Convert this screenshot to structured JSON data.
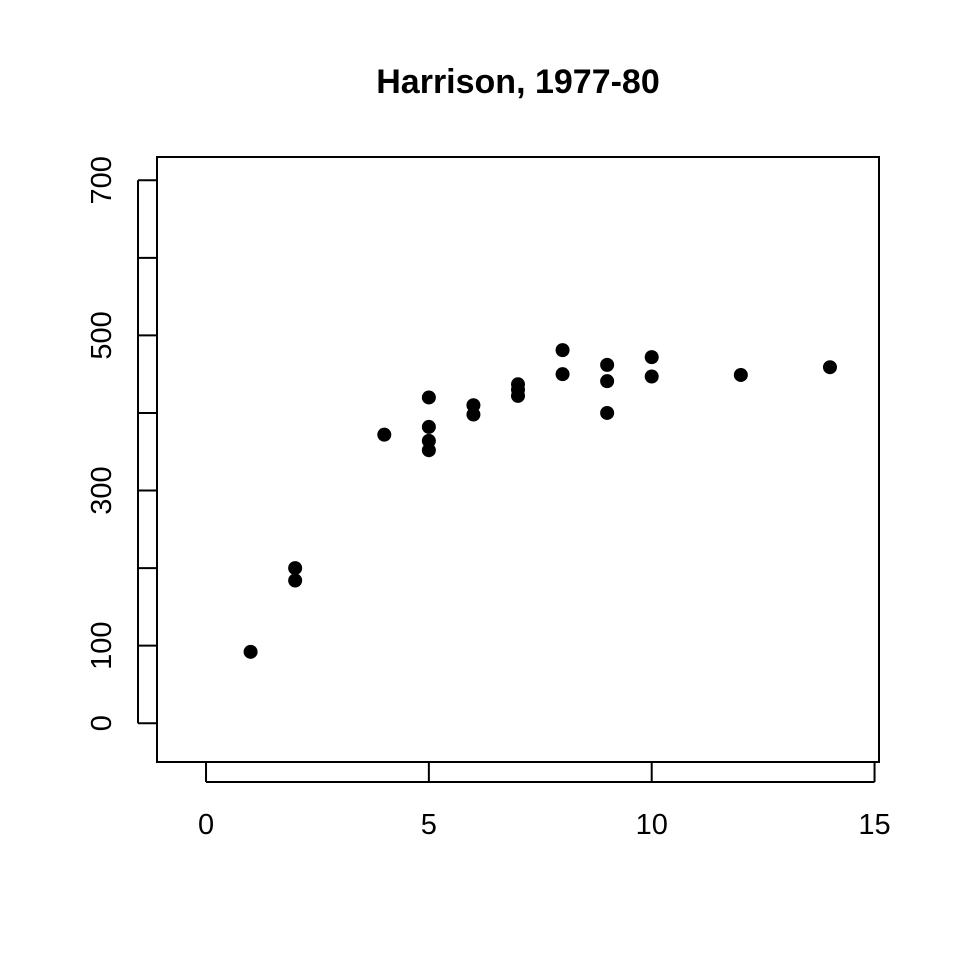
{
  "chart_data": {
    "type": "scatter",
    "title": "Harrison, 1977-80",
    "xlabel": "",
    "ylabel": "",
    "xlim": [
      -1.1,
      15.1
    ],
    "ylim": [
      -50,
      730
    ],
    "x_ticks": [
      0,
      5,
      10,
      15
    ],
    "y_ticks": [
      0,
      100,
      200,
      300,
      400,
      500,
      600,
      700
    ],
    "y_tick_labels": [
      {
        "value": 0,
        "label": "0"
      },
      {
        "value": 100,
        "label": "100"
      },
      {
        "value": 300,
        "label": "300"
      },
      {
        "value": 500,
        "label": "500"
      },
      {
        "value": 700,
        "label": "700"
      }
    ],
    "grid": false,
    "points": [
      {
        "x": 1,
        "y": 92
      },
      {
        "x": 2,
        "y": 200
      },
      {
        "x": 2,
        "y": 184
      },
      {
        "x": 4,
        "y": 372
      },
      {
        "x": 5,
        "y": 420
      },
      {
        "x": 5,
        "y": 382
      },
      {
        "x": 5,
        "y": 364
      },
      {
        "x": 5,
        "y": 352
      },
      {
        "x": 6,
        "y": 410
      },
      {
        "x": 6,
        "y": 398
      },
      {
        "x": 7,
        "y": 437
      },
      {
        "x": 7,
        "y": 430
      },
      {
        "x": 7,
        "y": 422
      },
      {
        "x": 8,
        "y": 481
      },
      {
        "x": 8,
        "y": 450
      },
      {
        "x": 9,
        "y": 462
      },
      {
        "x": 9,
        "y": 441
      },
      {
        "x": 9,
        "y": 400
      },
      {
        "x": 10,
        "y": 472
      },
      {
        "x": 10,
        "y": 447
      },
      {
        "x": 12,
        "y": 449
      },
      {
        "x": 14,
        "y": 459
      }
    ]
  }
}
